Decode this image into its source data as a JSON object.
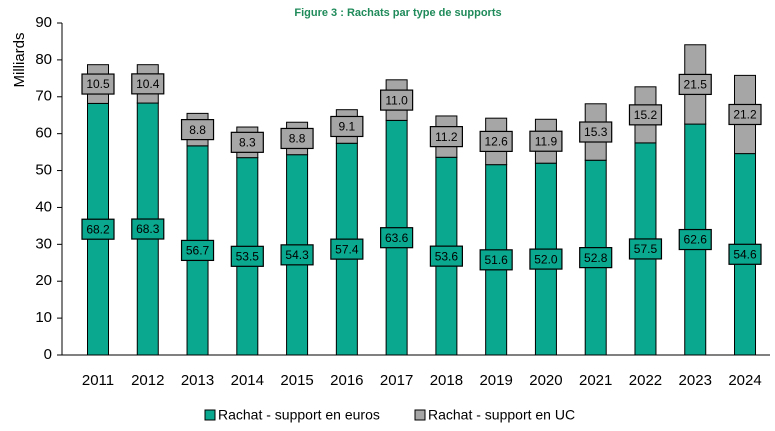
{
  "chart_data": {
    "type": "stacked_bar",
    "title": "Figure 3 : Rachats par type de supports",
    "ylabel": "Milliards",
    "categories": [
      "2011",
      "2012",
      "2013",
      "2014",
      "2015",
      "2016",
      "2017",
      "2018",
      "2019",
      "2020",
      "2021",
      "2022",
      "2023",
      "2024"
    ],
    "series": [
      {
        "name": "Rachat - support en euros",
        "color": "#0aa88e",
        "values": [
          68.2,
          68.3,
          56.7,
          53.5,
          54.3,
          57.4,
          63.6,
          53.6,
          51.6,
          52.0,
          52.8,
          57.5,
          62.6,
          54.6
        ],
        "value_labels": [
          "68.2",
          "68.3",
          "56.7",
          "53.5",
          "54.3",
          "57.4",
          "63.6",
          "53.6",
          "51.6",
          "52.0",
          "52.8",
          "57.5",
          "62.6",
          "54.6"
        ]
      },
      {
        "name": "Rachat - support en UC",
        "color": "#a6a6a6",
        "values": [
          10.5,
          10.4,
          8.8,
          8.3,
          8.8,
          9.1,
          11.0,
          11.2,
          12.6,
          11.9,
          15.3,
          15.2,
          21.5,
          21.2
        ],
        "value_labels": [
          "10.5",
          "10.4",
          "8.8",
          "8.3",
          "8.8",
          "9.1",
          "11.0",
          "11.2",
          "12.6",
          "11.9",
          "15.3",
          "15.2",
          "21.5",
          "21.2"
        ]
      }
    ],
    "ylim": [
      0,
      90
    ],
    "yticks": [
      0,
      10,
      20,
      30,
      40,
      50,
      60,
      70,
      80,
      90
    ],
    "grid": false,
    "legend": "bottom"
  }
}
